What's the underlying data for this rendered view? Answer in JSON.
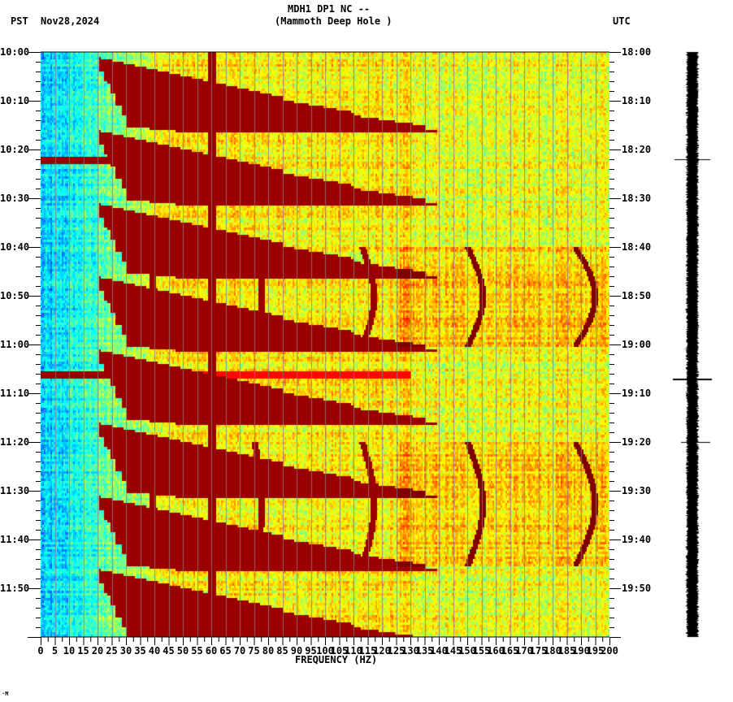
{
  "header": {
    "station_line": "MDH1 DP1 NC --",
    "location_line": "(Mammoth Deep Hole )",
    "left_timezone": "PST",
    "date": "Nov28,2024",
    "right_timezone": "UTC"
  },
  "footer_mark": "·M",
  "chart_data": {
    "type": "heatmap",
    "title": "MDH1 DP1 NC -- (Mammoth Deep Hole )",
    "xlabel": "FREQUENCY (HZ)",
    "ylabel_left": "PST",
    "ylabel_right": "UTC",
    "xlim": [
      0,
      200
    ],
    "x_ticks": [
      0,
      5,
      10,
      15,
      20,
      25,
      30,
      35,
      40,
      45,
      50,
      55,
      60,
      65,
      70,
      75,
      80,
      85,
      90,
      95,
      100,
      105,
      110,
      115,
      120,
      125,
      130,
      135,
      140,
      145,
      150,
      155,
      160,
      165,
      170,
      175,
      180,
      185,
      190,
      195,
      200
    ],
    "y_ticks_left": [
      "10:00",
      "10:10",
      "10:20",
      "10:30",
      "10:40",
      "10:50",
      "11:00",
      "11:10",
      "11:20",
      "11:30",
      "11:40",
      "11:50"
    ],
    "y_ticks_right": [
      "18:00",
      "18:10",
      "18:20",
      "18:30",
      "18:40",
      "18:50",
      "19:00",
      "19:10",
      "19:20",
      "19:30",
      "19:40",
      "19:50"
    ],
    "time_range_pst": [
      "10:00",
      "12:00"
    ],
    "colormap": [
      "#0000ff",
      "#0080ff",
      "#00ffff",
      "#80ff80",
      "#ffff00",
      "#ff8000",
      "#ff0000",
      "#800000"
    ],
    "features": {
      "constant_line_hz": 60,
      "broadband_bursts_pst": [
        "10:22",
        "11:06"
      ],
      "harmonic_sweep_starts_pst": [
        "10:00",
        "10:15",
        "10:30",
        "10:45",
        "11:00",
        "11:15",
        "11:30",
        "11:45"
      ],
      "curved_tremor_bands_hz": [
        38,
        75,
        113,
        150,
        188
      ],
      "curved_tremor_windows_pst": [
        [
          "10:40",
          "11:00"
        ],
        [
          "11:20",
          "11:45"
        ]
      ]
    }
  },
  "seismogram": {
    "trace_color": "#000000",
    "spike_times_pst": [
      "10:22",
      "11:07",
      "11:20"
    ]
  }
}
